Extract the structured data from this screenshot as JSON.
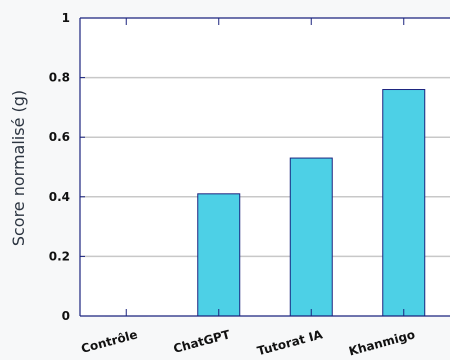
{
  "chart_data": {
    "type": "bar",
    "categories": [
      "Contrôle",
      "ChatGPT",
      "Tutorat IA",
      "Khanmigo"
    ],
    "values": [
      0.0,
      0.41,
      0.53,
      0.76
    ],
    "ylabel": "Score normalisé (g)",
    "ylim": [
      0,
      1
    ],
    "yticks": [
      "0",
      "0.2",
      "0.4",
      "0.6",
      "0.8",
      "1"
    ],
    "grid": true,
    "colors": {
      "bar_fill": "#4dd0e6",
      "bar_stroke": "#1a237e",
      "axis": "#1a237e",
      "grid": "#c8c8c8"
    }
  }
}
